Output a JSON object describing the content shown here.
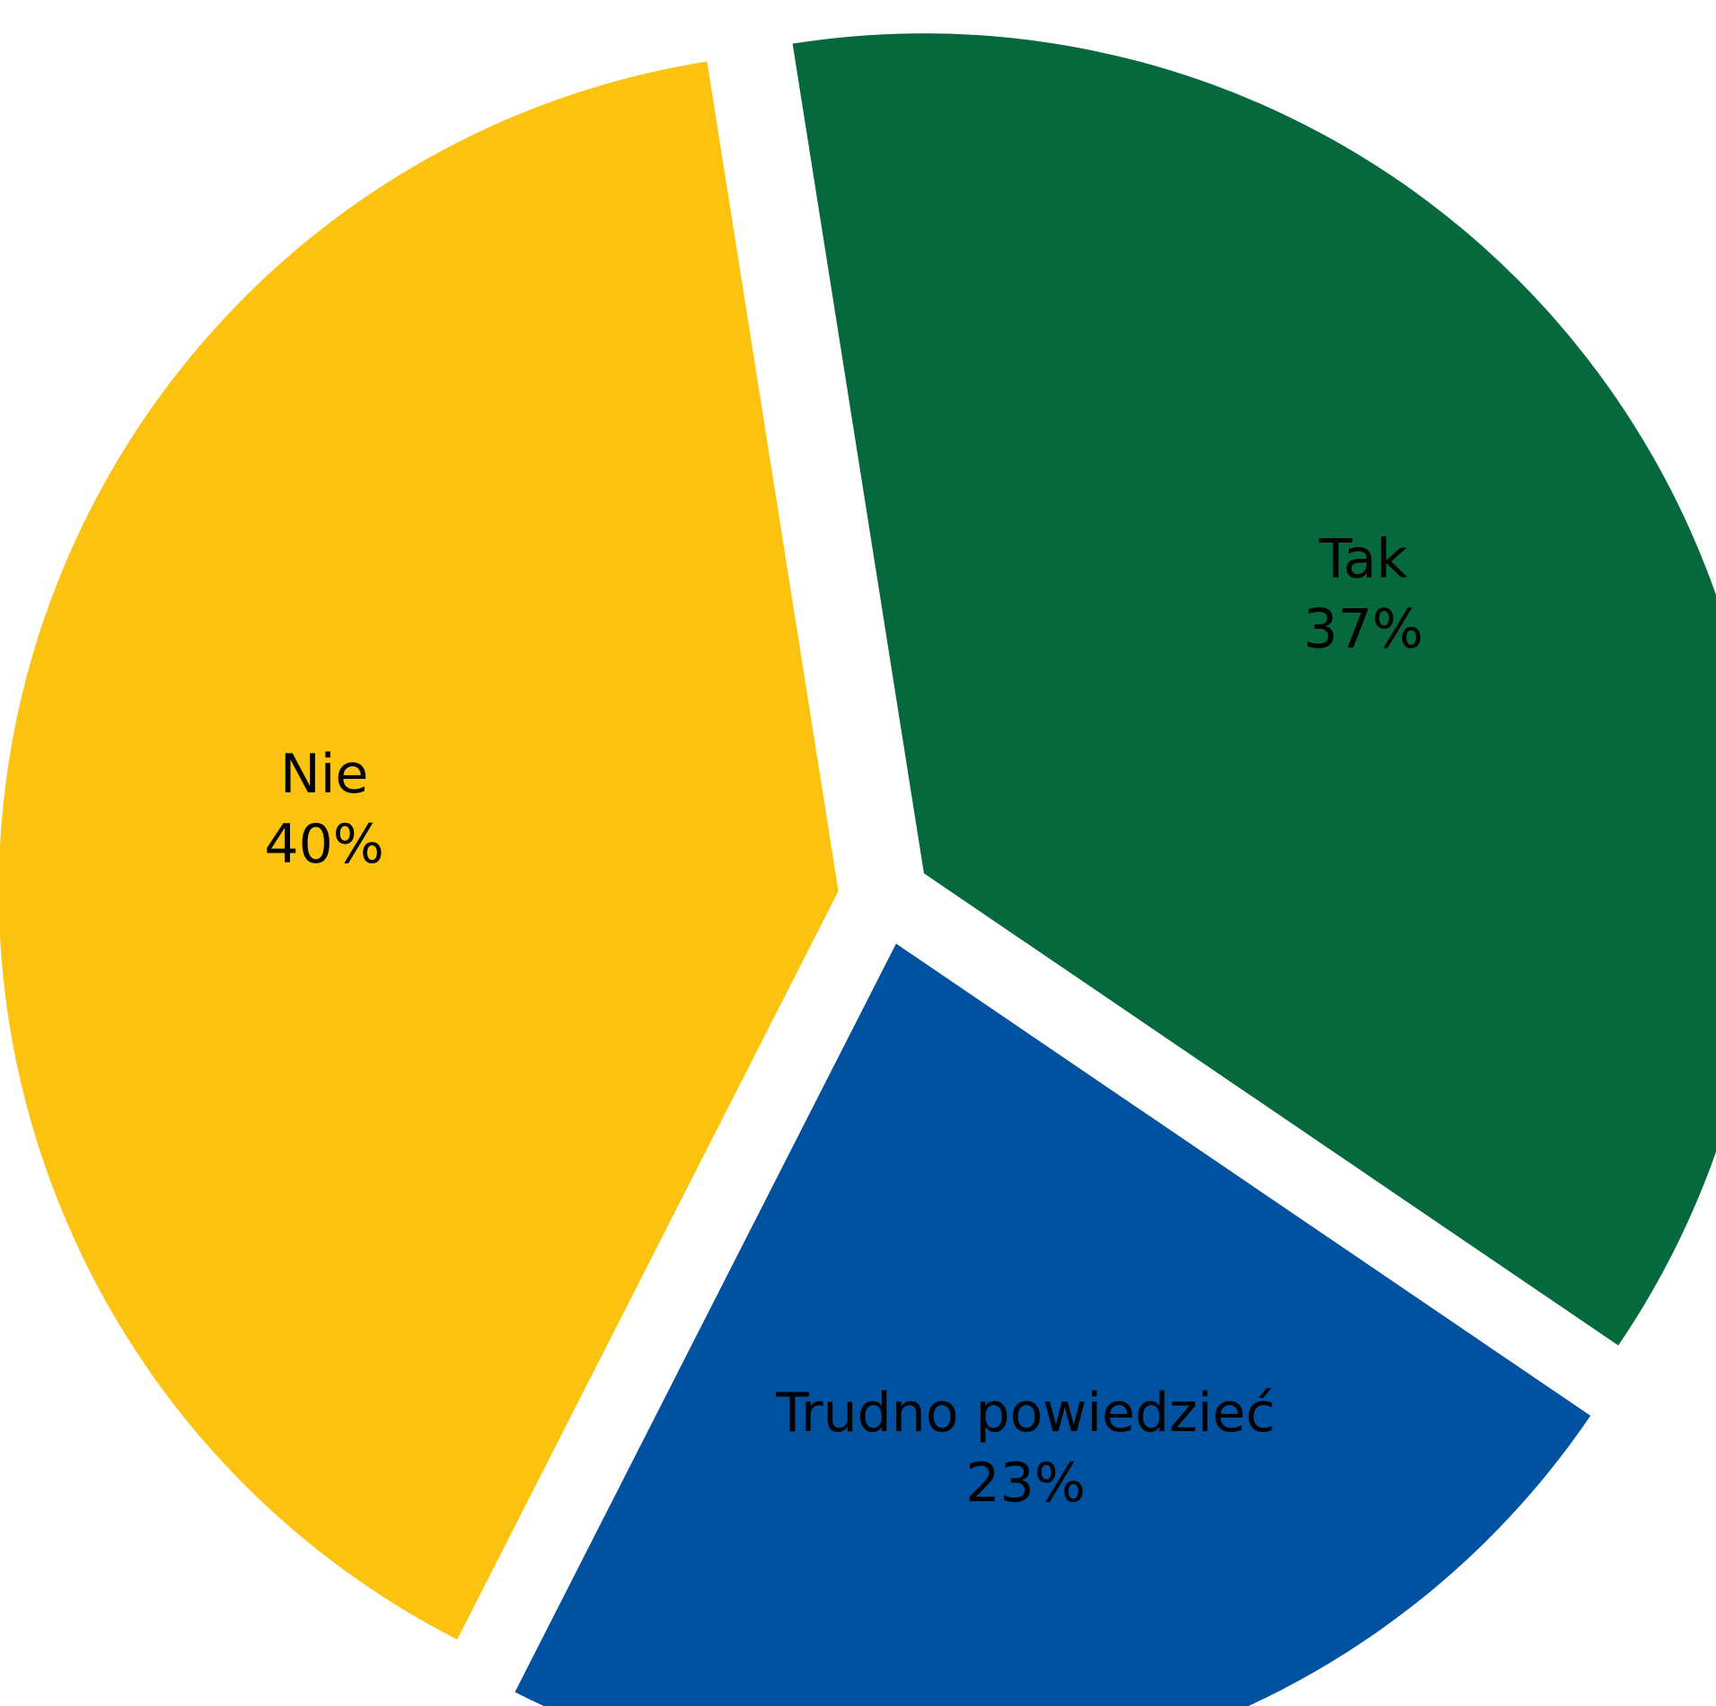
{
  "chart_data": {
    "type": "pie",
    "slices": [
      {
        "label": "Tak",
        "value": 37,
        "value_label": "37%",
        "color": "#06693e"
      },
      {
        "label": "Trudno powiedzieć",
        "value": 23,
        "value_label": "23%",
        "color": "#0052a0"
      },
      {
        "label": "Nie",
        "value": 40,
        "value_label": "40%",
        "color": "#fbc210"
      }
    ],
    "exploded": true,
    "start_angle_deg": -99,
    "direction": "clockwise",
    "legend": "none"
  }
}
